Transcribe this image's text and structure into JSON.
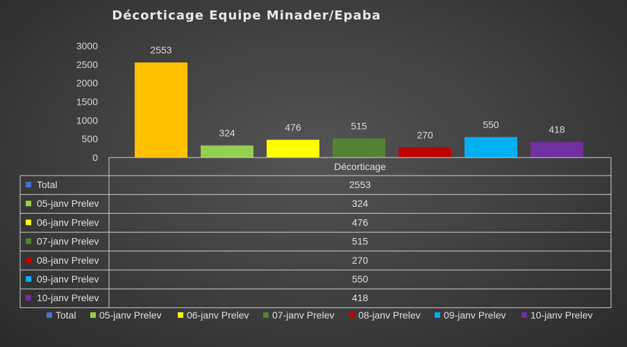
{
  "chart_data": {
    "type": "bar",
    "title": "Décorticage Equipe Minader/Epaba",
    "category_label": "Décorticage",
    "ylim": [
      0,
      3000
    ],
    "yticks": [
      0,
      500,
      1000,
      1500,
      2000,
      2500,
      3000
    ],
    "grid": false,
    "legend_placement": "bottom",
    "series": [
      {
        "name": "Total",
        "values": [
          2553
        ],
        "color": "#4472c4",
        "bar_color": "#ffc000"
      },
      {
        "name": "05-janv Prelev",
        "values": [
          324
        ],
        "color": "#92d050"
      },
      {
        "name": "06-janv Prelev",
        "values": [
          476
        ],
        "color": "#ffff00"
      },
      {
        "name": "07-janv Prelev",
        "values": [
          515
        ],
        "color": "#548235"
      },
      {
        "name": "08-janv Prelev",
        "values": [
          270
        ],
        "color": "#c00000"
      },
      {
        "name": "09-janv Prelev",
        "values": [
          550
        ],
        "color": "#00b0f0"
      },
      {
        "name": "10-janv Prelev",
        "values": [
          418
        ],
        "color": "#7030a0"
      }
    ]
  }
}
